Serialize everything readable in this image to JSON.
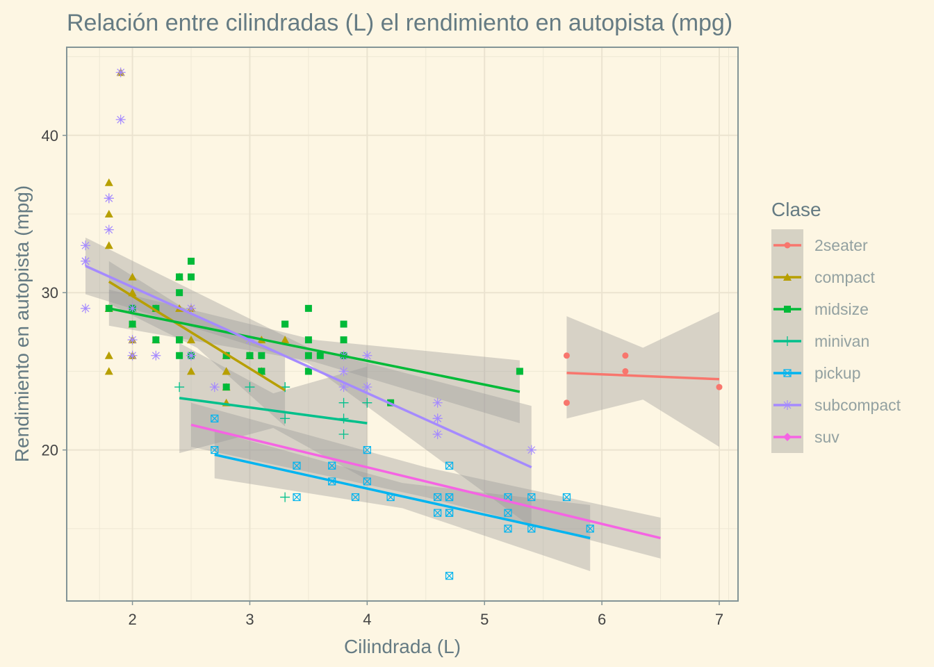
{
  "chart_data": {
    "type": "scatter",
    "title": "Relación entre cilindradas (L) el rendimiento en autopista (mpg)",
    "xlabel": "Cilindrada (L)",
    "ylabel": "Rendimiento en autopista (mpg)",
    "xlim": [
      1.44,
      7.16
    ],
    "ylim": [
      10.4,
      45.6
    ],
    "x_ticks": [
      2,
      3,
      4,
      5,
      6,
      7
    ],
    "y_ticks": [
      20,
      30,
      40
    ],
    "grid": true,
    "legend": {
      "title": "Clase",
      "placement": "right"
    },
    "series": [
      {
        "name": "2seater",
        "color": "#f8766d",
        "marker": "circle",
        "points": [
          [
            5.7,
            26
          ],
          [
            5.7,
            23
          ],
          [
            6.2,
            26
          ],
          [
            6.2,
            25
          ],
          [
            7.0,
            24
          ]
        ],
        "fit": {
          "x0": 5.7,
          "x1": 7.0,
          "y0": 24.9,
          "y1": 24.5
        },
        "band": [
          [
            5.7,
            28.5,
            22.0
          ],
          [
            6.35,
            26.5,
            23.2
          ],
          [
            7.0,
            28.8,
            20.2
          ]
        ]
      },
      {
        "name": "compact",
        "color": "#b79f00",
        "marker": "triangle",
        "points": [
          [
            1.8,
            29
          ],
          [
            1.8,
            29
          ],
          [
            2.0,
            31
          ],
          [
            2.0,
            30
          ],
          [
            2.8,
            26
          ],
          [
            2.8,
            26
          ],
          [
            3.1,
            27
          ],
          [
            1.8,
            26
          ],
          [
            1.8,
            25
          ],
          [
            2.0,
            28
          ],
          [
            2.0,
            27
          ],
          [
            2.8,
            25
          ],
          [
            2.8,
            25
          ],
          [
            3.1,
            25
          ],
          [
            3.1,
            25
          ],
          [
            2.2,
            27
          ],
          [
            2.2,
            29
          ],
          [
            2.4,
            31
          ],
          [
            2.4,
            31
          ],
          [
            3.0,
            26
          ],
          [
            3.0,
            26
          ],
          [
            3.3,
            27
          ],
          [
            1.8,
            37
          ],
          [
            1.8,
            35
          ],
          [
            1.8,
            33
          ],
          [
            1.9,
            44
          ],
          [
            2.0,
            29
          ],
          [
            2.0,
            29
          ],
          [
            2.0,
            26
          ],
          [
            2.5,
            29
          ],
          [
            2.5,
            27
          ],
          [
            2.5,
            25
          ],
          [
            2.8,
            24
          ],
          [
            2.8,
            23
          ],
          [
            2.0,
            30
          ],
          [
            2.4,
            29
          ]
        ],
        "fit": {
          "x0": 1.8,
          "x1": 3.3,
          "y0": 30.7,
          "y1": 23.8
        },
        "band": [
          [
            1.8,
            32.0,
            29.3
          ],
          [
            2.55,
            28.5,
            26.5
          ],
          [
            3.3,
            26.0,
            21.5
          ]
        ]
      },
      {
        "name": "midsize",
        "color": "#00ba38",
        "marker": "square",
        "points": [
          [
            2.4,
            27
          ],
          [
            2.4,
            30
          ],
          [
            3.1,
            26
          ],
          [
            3.5,
            29
          ],
          [
            3.6,
            26
          ],
          [
            2.4,
            31
          ],
          [
            3.0,
            26
          ],
          [
            3.3,
            28
          ],
          [
            3.3,
            28
          ],
          [
            2.5,
            32
          ],
          [
            2.5,
            31
          ],
          [
            2.4,
            27
          ],
          [
            2.4,
            26
          ],
          [
            3.5,
            27
          ],
          [
            3.8,
            28
          ],
          [
            3.8,
            26
          ],
          [
            1.8,
            29
          ],
          [
            2.0,
            28
          ],
          [
            2.0,
            29
          ],
          [
            2.8,
            26
          ],
          [
            2.8,
            24
          ],
          [
            3.1,
            25
          ],
          [
            2.5,
            26
          ],
          [
            2.2,
            27
          ],
          [
            2.4,
            31
          ],
          [
            3.5,
            26
          ],
          [
            3.5,
            25
          ],
          [
            3.8,
            27
          ],
          [
            4.2,
            23
          ],
          [
            5.3,
            25
          ],
          [
            3.1,
            25
          ],
          [
            2.2,
            29
          ],
          [
            2.0,
            29
          ],
          [
            3.0,
            26
          ]
        ],
        "fit": {
          "x0": 1.8,
          "x1": 5.3,
          "y0": 29.0,
          "y1": 23.7
        },
        "band": [
          [
            1.8,
            30.2,
            27.9
          ],
          [
            3.55,
            27.0,
            25.6
          ],
          [
            5.3,
            25.7,
            21.7
          ]
        ]
      },
      {
        "name": "minivan",
        "color": "#00c08b",
        "marker": "plus",
        "points": [
          [
            2.4,
            24
          ],
          [
            3.0,
            24
          ],
          [
            3.3,
            22
          ],
          [
            3.3,
            22
          ],
          [
            3.3,
            24
          ],
          [
            3.3,
            24
          ],
          [
            3.3,
            17
          ],
          [
            3.8,
            22
          ],
          [
            3.8,
            21
          ],
          [
            3.8,
            23
          ],
          [
            4.0,
            23
          ]
        ],
        "fit": {
          "x0": 2.4,
          "x1": 4.0,
          "y0": 23.3,
          "y1": 21.7
        },
        "band": [
          [
            2.4,
            26.8,
            19.8
          ],
          [
            3.2,
            23.6,
            21.4
          ],
          [
            4.0,
            25.3,
            18.1
          ]
        ]
      },
      {
        "name": "pickup",
        "color": "#00b4f0",
        "marker": "square-x",
        "points": [
          [
            2.7,
            20
          ],
          [
            2.7,
            22
          ],
          [
            3.4,
            17
          ],
          [
            3.4,
            19
          ],
          [
            4.0,
            20
          ],
          [
            4.7,
            17
          ],
          [
            4.7,
            12
          ],
          [
            4.7,
            16
          ],
          [
            5.2,
            17
          ],
          [
            5.7,
            17
          ],
          [
            5.9,
            15
          ],
          [
            4.7,
            19
          ],
          [
            4.7,
            16
          ],
          [
            4.7,
            17
          ],
          [
            5.2,
            15
          ],
          [
            5.2,
            16
          ],
          [
            3.7,
            19
          ],
          [
            3.7,
            18
          ],
          [
            3.9,
            17
          ],
          [
            4.6,
            16
          ],
          [
            4.6,
            17
          ],
          [
            5.4,
            17
          ],
          [
            5.4,
            15
          ],
          [
            4.2,
            17
          ],
          [
            4.0,
            18
          ]
        ],
        "fit": {
          "x0": 2.7,
          "x1": 5.9,
          "y0": 19.7,
          "y1": 14.4
        },
        "band": [
          [
            2.7,
            21.2,
            18.2
          ],
          [
            4.3,
            17.9,
            16.3
          ],
          [
            5.9,
            16.5,
            12.3
          ]
        ]
      },
      {
        "name": "subcompact",
        "color": "#a58aff",
        "marker": "star",
        "points": [
          [
            1.6,
            33
          ],
          [
            1.6,
            32
          ],
          [
            1.6,
            32
          ],
          [
            1.6,
            29
          ],
          [
            1.6,
            32
          ],
          [
            1.8,
            34
          ],
          [
            1.8,
            36
          ],
          [
            1.8,
            36
          ],
          [
            1.9,
            41
          ],
          [
            1.9,
            44
          ],
          [
            2.0,
            29
          ],
          [
            2.0,
            26
          ],
          [
            2.0,
            27
          ],
          [
            2.2,
            26
          ],
          [
            2.5,
            29
          ],
          [
            2.5,
            26
          ],
          [
            3.0,
            27
          ],
          [
            3.8,
            26
          ],
          [
            3.8,
            25
          ],
          [
            4.0,
            26
          ],
          [
            4.0,
            24
          ],
          [
            4.6,
            21
          ],
          [
            4.6,
            22
          ],
          [
            4.6,
            23
          ],
          [
            5.4,
            20
          ],
          [
            2.5,
            26
          ],
          [
            3.8,
            24
          ],
          [
            4.6,
            22
          ],
          [
            2.7,
            24
          ]
        ],
        "fit": {
          "x0": 1.6,
          "x1": 5.4,
          "y0": 31.7,
          "y1": 18.9
        },
        "band": [
          [
            1.6,
            33.5,
            29.9
          ],
          [
            3.5,
            26.5,
            25.5
          ],
          [
            5.4,
            22.8,
            15.1
          ]
        ]
      },
      {
        "name": "suv",
        "color": "#f564e3",
        "marker": "diamond",
        "points": [],
        "fit": {
          "x0": 2.5,
          "x1": 6.5,
          "y0": 21.6,
          "y1": 14.4
        },
        "band": [
          [
            2.5,
            23.0,
            20.2
          ],
          [
            4.5,
            18.9,
            17.0
          ],
          [
            6.5,
            15.7,
            13.1
          ]
        ]
      }
    ]
  }
}
